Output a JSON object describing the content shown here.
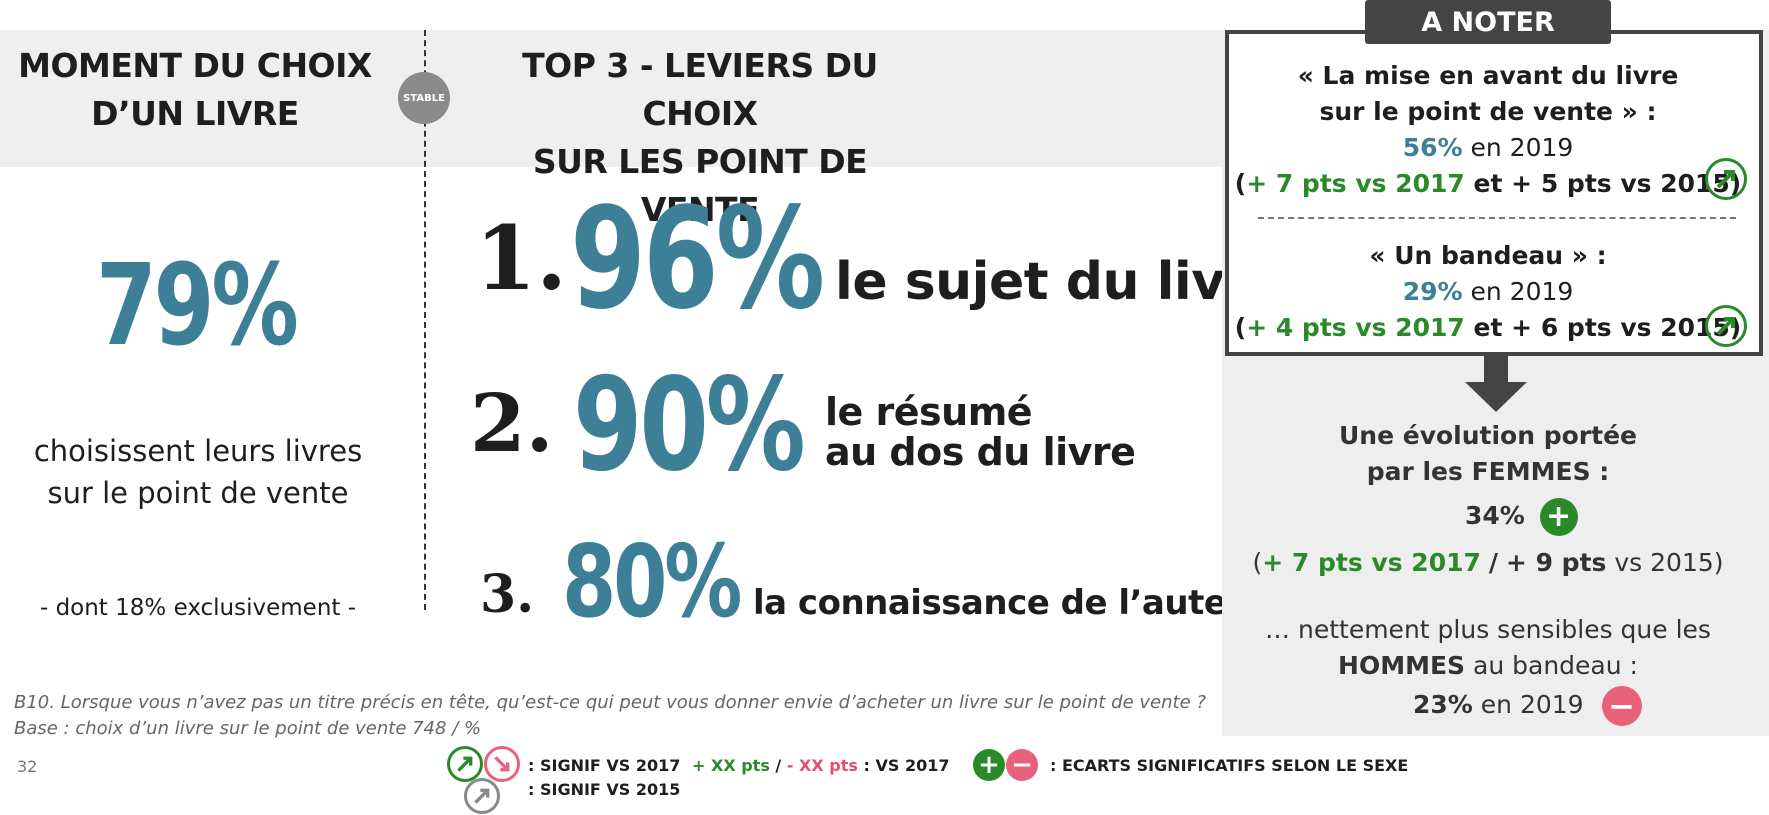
{
  "left": {
    "title_line1": "MOMENT DU CHOIX",
    "title_line2": "D’UN LIVRE",
    "big_value": "79%",
    "desc_line1": "choisissent leurs livres",
    "desc_line2": "sur le point de vente",
    "sub": "- dont 18% exclusivement -"
  },
  "stable_badge": "STABLE",
  "middle": {
    "title_line1": "TOP 3 - LEVIERS DU CHOIX",
    "title_line2": "SUR LES POINT DE VENTE",
    "items": [
      {
        "rank": "1.",
        "value": "96%",
        "label_line1": "le sujet du livre",
        "label_line2": ""
      },
      {
        "rank": "2.",
        "value": "90%",
        "label_line1": "le résumé",
        "label_line2": "au dos du livre"
      },
      {
        "rank": "3.",
        "value": "80%",
        "label_line1": "la connaissance de l’auteur",
        "label_line2": ""
      }
    ]
  },
  "note": {
    "tab": "A NOTER",
    "q1_line1": "« La mise en avant du livre",
    "q1_line2": "sur le point de vente » :",
    "q1_value": "56%",
    "q1_year": "en 2019",
    "q1_open": "(",
    "q1_vs2017": "+ 7 pts vs 2017",
    "q1_et": "et",
    "q1_vs2015": "+ 5 pts vs 2015)",
    "q2_line1": "« Un bandeau  » :",
    "q2_value": "29%",
    "q2_year": "en 2019",
    "q2_open": "(",
    "q2_vs2017": "+ 4 pts vs 2017",
    "q2_et": "et",
    "q2_vs2015": "+ 6 pts vs 2015)",
    "evo_line1": "Une évolution portée",
    "evo_line2": "par les FEMMES :",
    "femmes_value": "34%",
    "femmes_open": "(",
    "femmes_vs2017": "+ 7 pts vs 2017",
    "femmes_sep": "/",
    "femmes_vs2015_a": "+ 9 pts",
    "femmes_vs2015_b": "vs 2015)",
    "sens_line1": "… nettement plus sensibles que les",
    "sens_hommes": "HOMMES",
    "sens_rest": "au bandeau :",
    "hommes_value": "23%",
    "hommes_year": "en 2019"
  },
  "footer": {
    "question": "B10. Lorsque vous n’avez pas un titre précis en tête, qu’est-ce qui peut vous donner envie d’acheter un livre sur le point de vente ?",
    "base": "Base : choix d’un livre sur le point de vente 748 / %",
    "page": "32",
    "legend_signif_2017": ": SIGNIF VS 2017",
    "legend_signif_2015": ": SIGNIF VS 2015",
    "legend_plus": "+ XX pts",
    "legend_slash": "/",
    "legend_minus": "- XX pts",
    "legend_vs": ": VS 2017",
    "legend_ecarts": ": ECARTS SIGNIFICATIFS SELON LE SEXE"
  },
  "colors": {
    "accent": "#3e7f98",
    "positive": "#2a8a2a",
    "negative": "#e9607a",
    "dark": "#444444"
  }
}
